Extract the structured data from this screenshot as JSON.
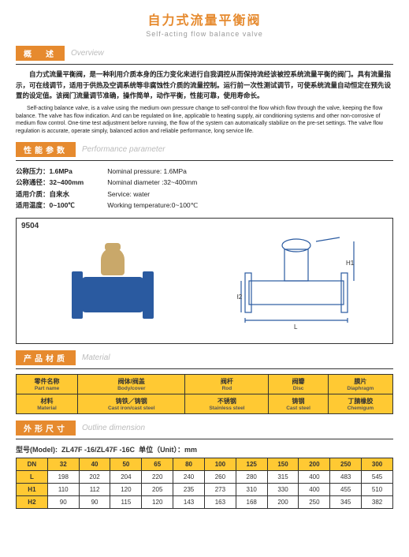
{
  "title_cn": "自力式流量平衡阀",
  "title_en": "Self-acting flow balance valve",
  "sections": {
    "overview": {
      "cn": "概　述",
      "en": "Overview"
    },
    "params": {
      "cn": "性能参数",
      "en": "Performance parameter"
    },
    "material": {
      "cn": "产品材质",
      "en": "Material"
    },
    "dimension": {
      "cn": "外形尺寸",
      "en": "Outline dimension"
    }
  },
  "overview": {
    "cn": "自力式流量平衡阀，是一种利用介质本身的压力变化来进行自我调控从而保持流经该被控系统流量平衡的阀门。具有流量指示，可在线调节，适用于供热及空调系统等非腐蚀性介质的流量控制。运行前一次性测试调节，可使系统流量自动恒定在预先设置的设定值。该阀门流量调节准确，操作简单，动作平衡，性能可靠，使用寿命长。",
    "en": "Self-acting balance valve, is a valve using the medium own pressure change to self-control the flow which flow through the valve, keeping the flow balance. The valve has flow indication. And can be regulated on line, applicable to heating supply, air conditioning systems and other non-corrosive of medium flow control. One-time test adjustment before running, the flow of the system can automatically stabilize on the pre-set settings. The valve flow regulation is accurate, operate simply, balanced action and reliable performance, long service life."
  },
  "params": {
    "cn": [
      "公称压力：1.6MPa",
      "公称通径：32~400mm",
      "适用介质：自来水",
      "适用温度：0~100℃"
    ],
    "en": [
      "Nominal pressure: 1.6MPa",
      "Nominal diameter :32~400mm",
      "Service: water",
      "Working temperature:0~100℃"
    ]
  },
  "figure_label": "9504",
  "dim_labels": {
    "h1": "H1",
    "h2": "H2",
    "l": "L"
  },
  "material": {
    "headers": [
      {
        "cn": "零件名称",
        "en": "Part name"
      },
      {
        "cn": "阀体/阀盖",
        "en": "Body/cover"
      },
      {
        "cn": "阀杆",
        "en": "Rod"
      },
      {
        "cn": "阀瓣",
        "en": "Disc"
      },
      {
        "cn": "膜片",
        "en": "Diaphragm"
      }
    ],
    "row": [
      {
        "cn": "材料",
        "en": "Material"
      },
      {
        "cn": "铸铁／铸钢",
        "en": "Cast iron/cast steel"
      },
      {
        "cn": "不锈钢",
        "en": "Stainless steel"
      },
      {
        "cn": "铸钢",
        "en": "Cast steel"
      },
      {
        "cn": "丁腈橡胶",
        "en": "Chemigum"
      }
    ]
  },
  "dimension": {
    "model_label": "型号(Model):",
    "model_value": "ZL47F -16/ZL47F -16C",
    "unit_label": "单位（Unit）：mm",
    "cols": [
      "32",
      "40",
      "50",
      "65",
      "80",
      "100",
      "125",
      "150",
      "200",
      "250",
      "300"
    ],
    "rows": [
      {
        "h": "DN",
        "v": [
          "32",
          "40",
          "50",
          "65",
          "80",
          "100",
          "125",
          "150",
          "200",
          "250",
          "300"
        ]
      },
      {
        "h": "L",
        "v": [
          "198",
          "202",
          "204",
          "220",
          "240",
          "260",
          "280",
          "315",
          "400",
          "483",
          "545"
        ]
      },
      {
        "h": "H1",
        "v": [
          "110",
          "112",
          "120",
          "205",
          "235",
          "273",
          "310",
          "330",
          "400",
          "455",
          "510"
        ]
      },
      {
        "h": "H2",
        "v": [
          "90",
          "90",
          "115",
          "120",
          "143",
          "163",
          "168",
          "200",
          "250",
          "345",
          "382"
        ]
      }
    ]
  },
  "colors": {
    "accent": "#e68a2e",
    "tableHeader": "#ffc933",
    "valve": "#2a5aa0"
  }
}
